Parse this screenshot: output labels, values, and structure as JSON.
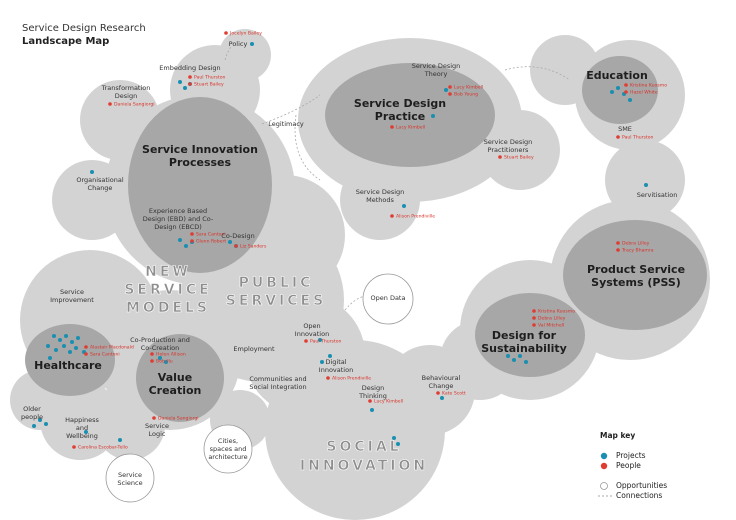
{
  "header": {
    "title": "Service Design Research",
    "subtitle": "Landscape Map"
  },
  "regions": [
    "NEW SERVICE MODELS",
    "PUBLIC SERVICES",
    "SOCIAL INNOVATION"
  ],
  "nodes": [
    {
      "label": [
        "Policy"
      ],
      "people": [
        "Jocelyn Bailey"
      ]
    },
    {
      "label": [
        "Embedding Design"
      ],
      "people": [
        "Paul Thurston",
        "Stuart Bailey"
      ]
    },
    {
      "label": [
        "Transformation",
        "Design"
      ],
      "people": [
        "Daniela Sangiorgi"
      ]
    },
    {
      "label": [
        "Legitimacy"
      ]
    },
    {
      "label": [
        "Service Innovation",
        "Processes"
      ]
    },
    {
      "label": [
        "Organisational",
        "Change"
      ]
    },
    {
      "label": [
        "Experience Based",
        "Design (EBD) and Co-",
        "Design (EBCD)"
      ],
      "people": [
        "Sara Cantoni",
        "Glenn Robert"
      ]
    },
    {
      "label": [
        "Co-Design"
      ],
      "people": [
        "Liz Sanders"
      ]
    },
    {
      "label": [
        "Service Design",
        "Theory"
      ],
      "people": [
        "Lucy Kimbell",
        "Bob Young"
      ]
    },
    {
      "label": [
        "Service Design",
        "Practice"
      ],
      "people": [
        "Lucy Kimbell"
      ]
    },
    {
      "label": [
        "Service Design",
        "Practitioners"
      ],
      "people": [
        "Stuart Bailey"
      ]
    },
    {
      "label": [
        "Service Design",
        "Methods"
      ],
      "people": [
        "Alison Prendiville"
      ]
    },
    {
      "label": [
        "Education"
      ],
      "people": [
        "Kristina Kuosmo",
        "Hazel White"
      ]
    },
    {
      "label": [
        "SME"
      ],
      "people": [
        "Paul Thurston"
      ]
    },
    {
      "label": [
        "Servitisation"
      ]
    },
    {
      "label": [
        "Product Service",
        "Systems (PSS)"
      ],
      "people": [
        "Debra Lilley",
        "Tracy Bhamra"
      ]
    },
    {
      "label": [
        "Design for",
        "Sustainability"
      ],
      "people": [
        "Kristina Kuosmo",
        "Debra Lilley",
        "Val Mitchell"
      ]
    },
    {
      "label": [
        "Open Data"
      ]
    },
    {
      "label": [
        "Open",
        "Innovation"
      ],
      "people": [
        "Paul Thurston"
      ]
    },
    {
      "label": [
        "Digital",
        "Innovation"
      ],
      "people": [
        "Alison Prendiville"
      ]
    },
    {
      "label": [
        "Employment"
      ]
    },
    {
      "label": [
        "Communities and",
        "Social Integration"
      ]
    },
    {
      "label": [
        "Design",
        "Thinking"
      ],
      "people": [
        "Lucy Kimbell"
      ]
    },
    {
      "label": [
        "Behavioural",
        "Change"
      ],
      "people": [
        "Kate Scott"
      ]
    },
    {
      "label": [
        "Service",
        "Improvement"
      ]
    },
    {
      "label": [
        "Healthcare"
      ],
      "people": [
        "Alastair Macdonald",
        "Sara Cantoni"
      ]
    },
    {
      "label": [
        "Co-Production and",
        "Co-Creation"
      ],
      "people": [
        "Helen Allison",
        "Bob Hu"
      ]
    },
    {
      "label": [
        "Value",
        "Creation"
      ]
    },
    {
      "label": [
        "Older",
        "people"
      ]
    },
    {
      "label": [
        "Happiness",
        "and",
        "Wellbeing"
      ],
      "people": [
        "Carolina Escobar-Tello"
      ]
    },
    {
      "label": [
        "Service",
        "Logic"
      ],
      "people": [
        "Daniela Sangiorgi"
      ]
    },
    {
      "label": [
        "Cities,",
        "spaces and",
        "architecture"
      ]
    },
    {
      "label": [
        "Service",
        "Science"
      ]
    }
  ],
  "map_key": {
    "title": "Map key",
    "items": [
      "Projects",
      "People",
      "Opportunities",
      "Connections"
    ]
  }
}
